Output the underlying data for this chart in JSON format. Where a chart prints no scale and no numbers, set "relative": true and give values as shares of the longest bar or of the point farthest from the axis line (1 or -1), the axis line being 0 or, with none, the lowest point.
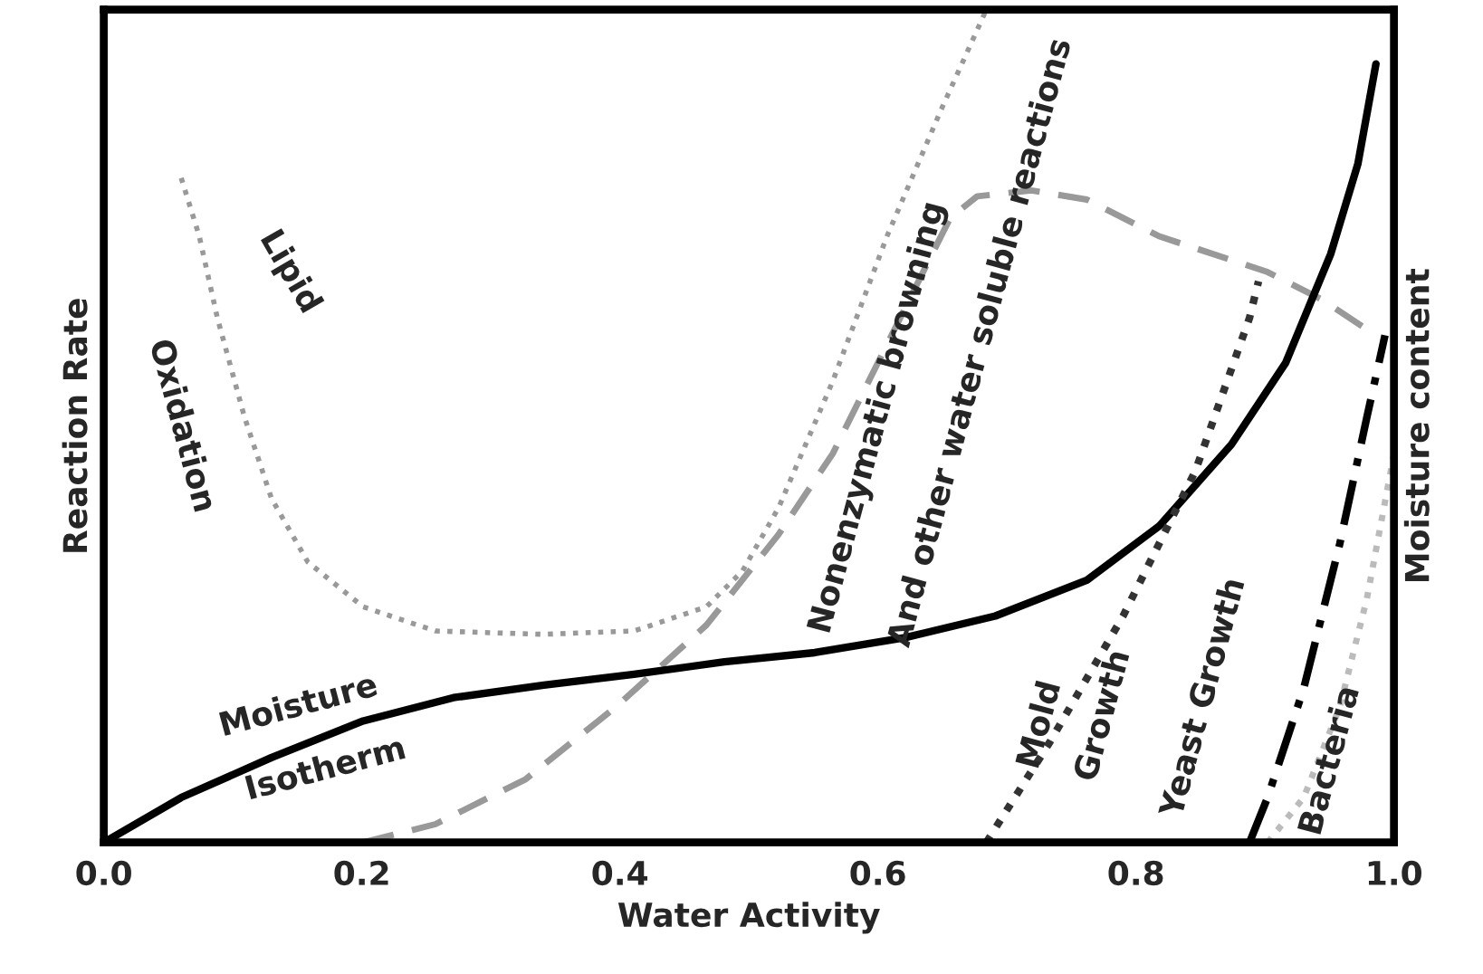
{
  "chart_data": {
    "type": "line",
    "relative": true,
    "xlabel": "Water Activity",
    "ylabel": "Reaction Rate",
    "y2label": "Moisture content",
    "xlim": [
      0,
      1
    ],
    "xticks": [
      {
        "value": 0,
        "label": "0.0"
      },
      {
        "value": 0.2,
        "label": "0.2"
      },
      {
        "value": 0.4,
        "label": "0.4"
      },
      {
        "value": 0.6,
        "label": "0.6"
      },
      {
        "value": 0.8,
        "label": "0.8"
      },
      {
        "value": 1,
        "label": "1.0"
      }
    ],
    "grid": false,
    "legend": false,
    "marker": "none",
    "series": [
      {
        "color": "#999999",
        "line_style": "dotted",
        "x": [
          0.06,
          0.074,
          0.088,
          0.109,
          0.13,
          0.158,
          0.201,
          0.257,
          0.341,
          0.411,
          0.467,
          0.495,
          0.523,
          0.565,
          0.607,
          0.649,
          0.684
        ],
        "values": [
          0.798,
          0.728,
          0.63,
          0.511,
          0.413,
          0.337,
          0.283,
          0.254,
          0.25,
          0.254,
          0.283,
          0.326,
          0.402,
          0.554,
          0.728,
          0.88,
          1.0
        ]
      },
      {
        "color": "#999999",
        "line_style": "dashed",
        "x": [
          0.201,
          0.257,
          0.327,
          0.397,
          0.467,
          0.523,
          0.565,
          0.607,
          0.635,
          0.656,
          0.677,
          0.719,
          0.762,
          0.818,
          0.902,
          0.944,
          0.986
        ],
        "values": [
          0,
          0.022,
          0.076,
          0.163,
          0.261,
          0.37,
          0.467,
          0.598,
          0.685,
          0.75,
          0.776,
          0.783,
          0.772,
          0.728,
          0.685,
          0.652,
          0.609
        ]
      },
      {
        "color": "#000000",
        "line_style": "solid",
        "x": [
          0,
          0.06,
          0.13,
          0.201,
          0.271,
          0.341,
          0.411,
          0.481,
          0.551,
          0.621,
          0.691,
          0.762,
          0.818,
          0.874,
          0.916,
          0.951,
          0.972,
          0.986
        ],
        "values": [
          0,
          0.054,
          0.102,
          0.146,
          0.174,
          0.189,
          0.202,
          0.217,
          0.228,
          0.246,
          0.272,
          0.315,
          0.38,
          0.478,
          0.576,
          0.707,
          0.815,
          0.935
        ]
      },
      {
        "color": "#333333",
        "line_style": "dotted",
        "x": [
          0.684,
          0.733,
          0.79,
          0.846,
          0.888,
          0.895
        ],
        "values": [
          0,
          0.12,
          0.272,
          0.446,
          0.63,
          0.674
        ]
      },
      {
        "color": "#000000",
        "line_style": "dashdot",
        "x": [
          0.888,
          0.902,
          0.93,
          0.958,
          0.979,
          0.993
        ],
        "values": [
          0,
          0.054,
          0.185,
          0.359,
          0.511,
          0.609
        ]
      },
      {
        "color": "#bbbbbb",
        "line_style": "dotted",
        "x": [
          0.902,
          0.93,
          0.958,
          0.979,
          1.0
        ],
        "values": [
          0,
          0.054,
          0.163,
          0.293,
          0.467
        ]
      }
    ],
    "annotations": [
      "Lipid",
      "Oxidation",
      "Nonenzymatic browning",
      "And other water soluble reactions",
      "Moisture",
      "Isotherm",
      "Mold",
      "Growth",
      "Yeast Growth",
      "Bacteria"
    ]
  }
}
